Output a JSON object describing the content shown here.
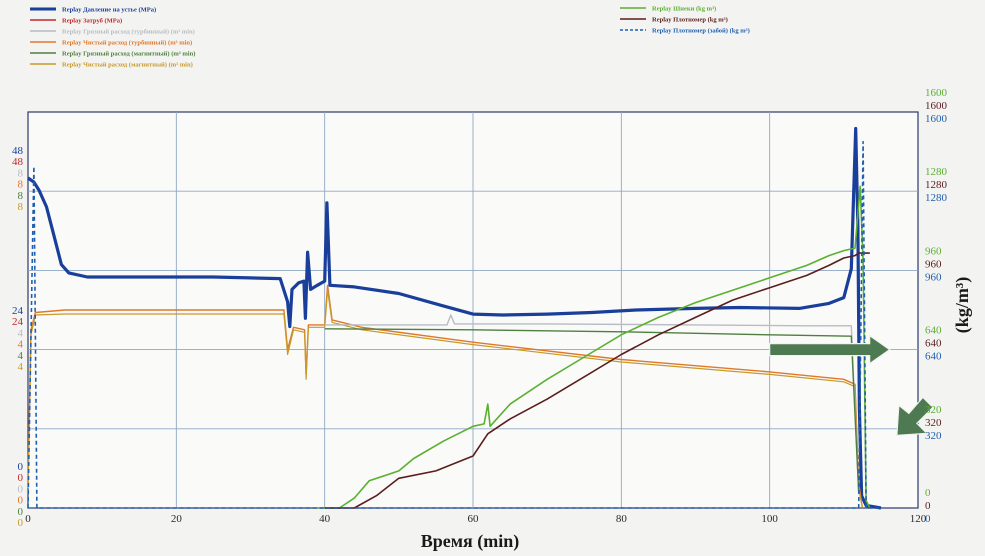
{
  "chart_data": {
    "type": "line",
    "xlabel": "Время (min)",
    "ylabel_right": "(kg/m³)",
    "xlim": [
      0,
      120
    ],
    "x_ticks": [
      0,
      20,
      40,
      60,
      80,
      100,
      120
    ],
    "legend": [
      {
        "label": "Replay Давление на устье (MPa)",
        "color": "#1a3f9b",
        "style": "solid"
      },
      {
        "label": "Replay Затруб (MPa)",
        "color": "#c0282d",
        "style": "solid"
      },
      {
        "label": "Replay Грязный расход (турбинный) (m³ min)",
        "color": "#b8bcc4",
        "style": "solid"
      },
      {
        "label": "Replay Чистый расход (турбинный) (m³ min)",
        "color": "#e0782a",
        "style": "solid"
      },
      {
        "label": "Replay Грязный расход (магнитный) (m³ min)",
        "color": "#4f7f3f",
        "style": "solid"
      },
      {
        "label": "Replay Чистый расход (магнитный) (m³ min)",
        "color": "#c79a2a",
        "style": "solid"
      },
      {
        "label": "Replay Шнеки (kg m³)",
        "color": "#5ab031",
        "style": "solid"
      },
      {
        "label": "Replay Плотномер (kg m³)",
        "color": "#5a1e1e",
        "style": "solid"
      },
      {
        "label": "Replay Плотномер (забой) (kg m³)",
        "color": "#1f5fb0",
        "style": "dashed"
      }
    ],
    "left_axis_labels": [
      {
        "text": "48",
        "color": "#1a3f9b",
        "level": "top"
      },
      {
        "text": "48",
        "color": "#c0282d",
        "level": "top"
      },
      {
        "text": "8",
        "color": "#b8bcc4",
        "level": "top"
      },
      {
        "text": "8",
        "color": "#e0782a",
        "level": "top"
      },
      {
        "text": "8",
        "color": "#4f7f3f",
        "level": "top"
      },
      {
        "text": "8",
        "color": "#c79a2a",
        "level": "top"
      },
      {
        "text": "24",
        "color": "#1a3f9b",
        "level": "mid"
      },
      {
        "text": "24",
        "color": "#c0282d",
        "level": "mid"
      },
      {
        "text": "4",
        "color": "#b8bcc4",
        "level": "mid"
      },
      {
        "text": "4",
        "color": "#e0782a",
        "level": "mid"
      },
      {
        "text": "4",
        "color": "#4f7f3f",
        "level": "mid"
      },
      {
        "text": "4",
        "color": "#c79a2a",
        "level": "mid"
      },
      {
        "text": "0",
        "color": "#1a3f9b",
        "level": "bottom"
      },
      {
        "text": "0",
        "color": "#c0282d",
        "level": "bottom"
      },
      {
        "text": "0",
        "color": "#b8bcc4",
        "level": "bottom"
      },
      {
        "text": "0",
        "color": "#e0782a",
        "level": "bottom"
      },
      {
        "text": "0",
        "color": "#4f7f3f",
        "level": "bottom"
      },
      {
        "text": "0",
        "color": "#c79a2a",
        "level": "bottom"
      }
    ],
    "right_axis": {
      "ticks": [
        0,
        320,
        640,
        960,
        1280,
        1600
      ],
      "colors": [
        "#5ab031",
        "#5a1e1e",
        "#1f5fb0"
      ]
    },
    "series": [
      {
        "id": "pressure",
        "color": "#1a3f9b",
        "width": 3.2,
        "axis": "pressure",
        "max": 48,
        "points": [
          [
            0,
            40
          ],
          [
            0.8,
            39.5
          ],
          [
            1.5,
            38.5
          ],
          [
            2.5,
            36.5
          ],
          [
            3.5,
            33
          ],
          [
            4.5,
            29.5
          ],
          [
            5.5,
            28.5
          ],
          [
            8,
            28
          ],
          [
            15,
            28
          ],
          [
            25,
            28
          ],
          [
            34,
            27.8
          ],
          [
            35,
            25
          ],
          [
            35.3,
            22
          ],
          [
            35.6,
            26.5
          ],
          [
            36.5,
            27.3
          ],
          [
            37.2,
            27.5
          ],
          [
            37.4,
            23
          ],
          [
            37.7,
            31
          ],
          [
            38.1,
            26.5
          ],
          [
            39,
            27
          ],
          [
            40,
            27.5
          ],
          [
            40.3,
            37
          ],
          [
            40.7,
            27
          ],
          [
            44,
            26.8
          ],
          [
            50,
            26
          ],
          [
            56,
            24.5
          ],
          [
            60,
            23.5
          ],
          [
            64,
            23.4
          ],
          [
            70,
            23.5
          ],
          [
            76,
            23.7
          ],
          [
            82,
            24
          ],
          [
            90,
            24.2
          ],
          [
            96,
            24.3
          ],
          [
            104,
            24.2
          ],
          [
            108,
            24.8
          ],
          [
            110,
            25.5
          ],
          [
            111,
            29
          ],
          [
            111.6,
            46
          ],
          [
            111.9,
            34
          ],
          [
            112.1,
            12
          ],
          [
            112.4,
            1.5
          ],
          [
            113,
            0.3
          ],
          [
            115,
            0
          ]
        ]
      },
      {
        "id": "clean-turbine",
        "color": "#e0782a",
        "width": 1.4,
        "axis": "flow",
        "max": 8,
        "points": [
          [
            0,
            0.5
          ],
          [
            0.4,
            3.6
          ],
          [
            1,
            3.95
          ],
          [
            5,
            4.0
          ],
          [
            20,
            4.0
          ],
          [
            34.5,
            4.0
          ],
          [
            35,
            3.2
          ],
          [
            35.8,
            3.65
          ],
          [
            37.3,
            3.6
          ],
          [
            37.5,
            2.7
          ],
          [
            37.8,
            3.7
          ],
          [
            40,
            3.7
          ],
          [
            40.4,
            4.5
          ],
          [
            41,
            3.8
          ],
          [
            45,
            3.65
          ],
          [
            60,
            3.35
          ],
          [
            80,
            3.0
          ],
          [
            100,
            2.75
          ],
          [
            110,
            2.6
          ],
          [
            111.5,
            2.5
          ],
          [
            112,
            0.5
          ],
          [
            112.5,
            0
          ]
        ]
      },
      {
        "id": "clean-magnetic",
        "color": "#c79a2a",
        "width": 1.2,
        "axis": "flow",
        "max": 8,
        "points": [
          [
            0,
            0.4
          ],
          [
            0.4,
            3.5
          ],
          [
            1,
            3.9
          ],
          [
            5,
            3.92
          ],
          [
            20,
            3.92
          ],
          [
            34.5,
            3.92
          ],
          [
            35,
            3.1
          ],
          [
            35.8,
            3.6
          ],
          [
            37.3,
            3.55
          ],
          [
            37.5,
            2.6
          ],
          [
            37.8,
            3.65
          ],
          [
            40,
            3.65
          ],
          [
            40.4,
            4.4
          ],
          [
            41,
            3.75
          ],
          [
            45,
            3.6
          ],
          [
            60,
            3.3
          ],
          [
            80,
            2.95
          ],
          [
            100,
            2.7
          ],
          [
            110,
            2.55
          ],
          [
            111.5,
            2.45
          ],
          [
            112,
            0.4
          ],
          [
            112.5,
            0
          ]
        ]
      },
      {
        "id": "dirty-turbine",
        "color": "#b8bcc4",
        "width": 1.4,
        "axis": "flow",
        "max": 8,
        "points": [
          [
            40,
            3.7
          ],
          [
            55,
            3.7
          ],
          [
            56.5,
            3.7
          ],
          [
            57,
            3.9
          ],
          [
            57.5,
            3.72
          ],
          [
            70,
            3.72
          ],
          [
            90,
            3.7
          ],
          [
            105,
            3.68
          ],
          [
            111,
            3.68
          ],
          [
            112,
            0.3
          ]
        ]
      },
      {
        "id": "dirty-magnetic",
        "color": "#4f7f3f",
        "width": 1.4,
        "axis": "flow",
        "max": 8,
        "points": [
          [
            40,
            3.62
          ],
          [
            60,
            3.6
          ],
          [
            80,
            3.56
          ],
          [
            100,
            3.5
          ],
          [
            111,
            3.47
          ],
          [
            112,
            0.3
          ]
        ]
      },
      {
        "id": "screw",
        "color": "#5ab031",
        "width": 1.6,
        "axis": "density",
        "max": 1600,
        "points": [
          [
            39,
            0
          ],
          [
            42,
            0
          ],
          [
            44,
            40
          ],
          [
            46,
            110
          ],
          [
            50,
            150
          ],
          [
            52,
            200
          ],
          [
            56,
            270
          ],
          [
            60,
            330
          ],
          [
            61.5,
            340
          ],
          [
            62,
            420
          ],
          [
            62.3,
            330
          ],
          [
            65,
            420
          ],
          [
            70,
            520
          ],
          [
            75,
            610
          ],
          [
            80,
            700
          ],
          [
            85,
            770
          ],
          [
            90,
            830
          ],
          [
            95,
            880
          ],
          [
            100,
            930
          ],
          [
            105,
            980
          ],
          [
            108,
            1020
          ],
          [
            110,
            1040
          ],
          [
            111.5,
            1050
          ],
          [
            112.2,
            1300
          ],
          [
            112.6,
            1000
          ],
          [
            113,
            30
          ],
          [
            113.5,
            0
          ]
        ]
      },
      {
        "id": "densitometer",
        "color": "#5a1e1e",
        "width": 1.6,
        "axis": "density",
        "max": 1600,
        "points": [
          [
            40,
            0
          ],
          [
            44,
            0
          ],
          [
            47,
            50
          ],
          [
            50,
            120
          ],
          [
            55,
            150
          ],
          [
            60,
            210
          ],
          [
            62,
            300
          ],
          [
            65,
            360
          ],
          [
            70,
            440
          ],
          [
            75,
            530
          ],
          [
            80,
            620
          ],
          [
            85,
            700
          ],
          [
            90,
            770
          ],
          [
            95,
            840
          ],
          [
            100,
            890
          ],
          [
            105,
            940
          ],
          [
            108,
            980
          ],
          [
            110,
            1010
          ],
          [
            111.5,
            1020
          ],
          [
            112,
            1030
          ],
          [
            113.5,
            1030
          ]
        ]
      },
      {
        "id": "densitometer-bottom",
        "color": "#1f5fb0",
        "width": 1.6,
        "dashed": true,
        "axis": "density",
        "max": 1600,
        "points": [
          [
            0,
            0
          ],
          [
            0.8,
            1380
          ],
          [
            1.2,
            0
          ],
          [
            2,
            0
          ],
          [
            8,
            0
          ],
          [
            40,
            0
          ],
          [
            60,
            0
          ],
          [
            100,
            0
          ],
          [
            112,
            0
          ],
          [
            112.6,
            1480
          ],
          [
            113,
            0
          ],
          [
            115,
            0
          ]
        ]
      }
    ],
    "annotations": [
      {
        "type": "arrow",
        "direction": "right",
        "color": "#4e7a52",
        "x": 100,
        "y_density": 640
      },
      {
        "type": "arrow",
        "direction": "down-left",
        "color": "#4e7a52",
        "x": 118.5,
        "y_density": 350
      }
    ]
  }
}
